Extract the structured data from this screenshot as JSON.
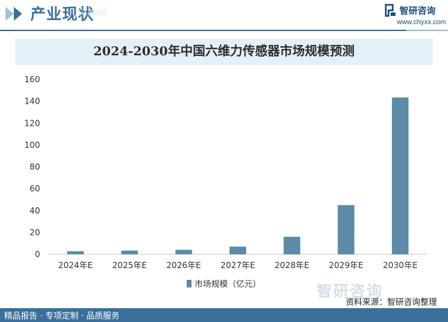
{
  "header": {
    "section_title": "产业现状",
    "watermark": "Status",
    "brand_name": "智研咨询",
    "brand_url": "www.chyxx.com"
  },
  "chart_data": {
    "type": "bar",
    "title": "2024-2030年中国六维力传感器市场规模预测",
    "categories": [
      "2024年E",
      "2025年E",
      "2026年E",
      "2027年E",
      "2028年E",
      "2029年E",
      "2030年E"
    ],
    "series": [
      {
        "name": "市场规模（亿元）",
        "values": [
          2.8,
          3.4,
          4.1,
          7.0,
          16.0,
          45.0,
          143.5
        ]
      }
    ],
    "ylim": [
      0,
      160
    ],
    "yticks": [
      0,
      20,
      40,
      60,
      80,
      100,
      120,
      140,
      160
    ],
    "grid": false,
    "legend_position": "bottom",
    "bar_color": "#5b8ba8"
  },
  "watermark_badge": "智研咨询",
  "footer": {
    "left_text": "精品报告 · 专项定制 · 品质服务",
    "source": "资料来源：智研咨询整理"
  }
}
